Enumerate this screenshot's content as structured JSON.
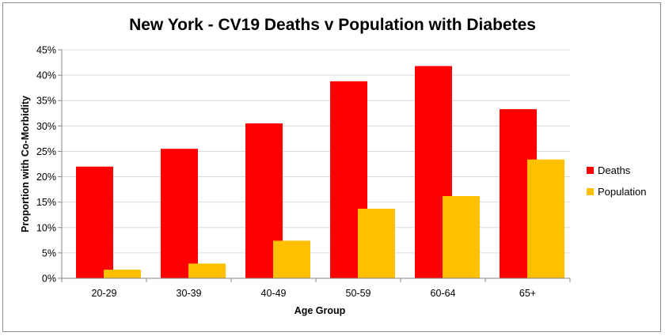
{
  "chart_data": {
    "type": "bar",
    "title": "New York - CV19 Deaths v Population with Diabetes",
    "xlabel": "Age Group",
    "ylabel": "Proportion with Co-Morbidity",
    "categories": [
      "20-29",
      "30-39",
      "40-49",
      "50-59",
      "60-64",
      "65+"
    ],
    "series": [
      {
        "name": "Deaths",
        "color": "#ff0000",
        "values": [
          22.0,
          25.5,
          30.5,
          38.8,
          41.8,
          33.3
        ]
      },
      {
        "name": "Population",
        "color": "#ffc000",
        "values": [
          1.7,
          2.9,
          7.4,
          13.7,
          16.2,
          23.4
        ]
      }
    ],
    "ylim": [
      0,
      45
    ],
    "yticks": [
      "0%",
      "5%",
      "10%",
      "15%",
      "20%",
      "25%",
      "30%",
      "35%",
      "40%",
      "45%"
    ],
    "grid": true,
    "legend_position": "right"
  }
}
